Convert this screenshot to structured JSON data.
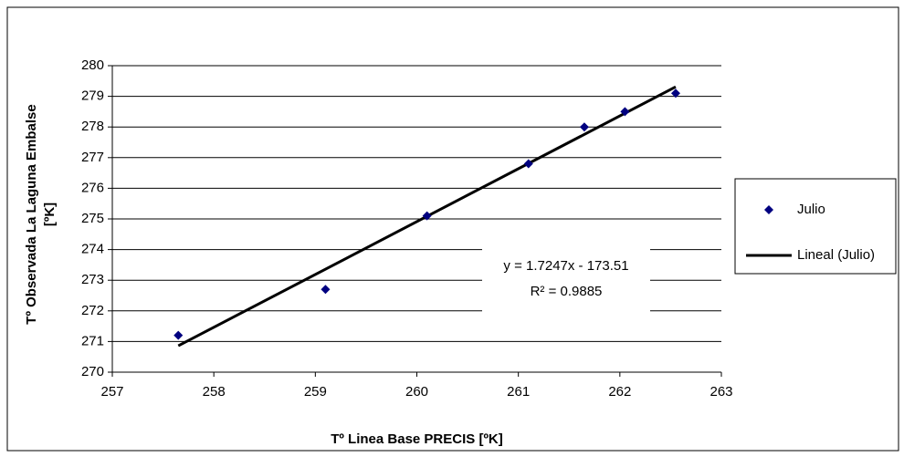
{
  "chart_data": {
    "type": "scatter",
    "xlabel": "Tº Linea Base PRECIS [ºK]",
    "ylabel": [
      "Tº Observada La Laguna Embalse",
      "[ºK]"
    ],
    "xlim": [
      257,
      263
    ],
    "xticks": [
      257,
      258,
      259,
      260,
      261,
      262,
      263
    ],
    "ylim": [
      270,
      280
    ],
    "yticks": [
      270,
      271,
      272,
      273,
      274,
      275,
      276,
      277,
      278,
      279,
      280
    ],
    "grid": true,
    "legend": "right",
    "series": [
      {
        "name": "Julio",
        "color": "#000080",
        "mode": "markers",
        "x": [
          257.65,
          259.1,
          260.1,
          261.1,
          261.65,
          262.05,
          262.55
        ],
        "values": [
          271.2,
          272.7,
          275.1,
          276.8,
          278.0,
          278.5,
          279.1
        ]
      },
      {
        "name": "Lineal (Julio)",
        "color": "#000000",
        "mode": "line",
        "x": [
          257.65,
          262.55
        ],
        "values": [
          270.86,
          279.31
        ]
      }
    ],
    "annotations": [
      "y = 1.7247x - 173.51",
      "R² = 0.9885"
    ]
  }
}
